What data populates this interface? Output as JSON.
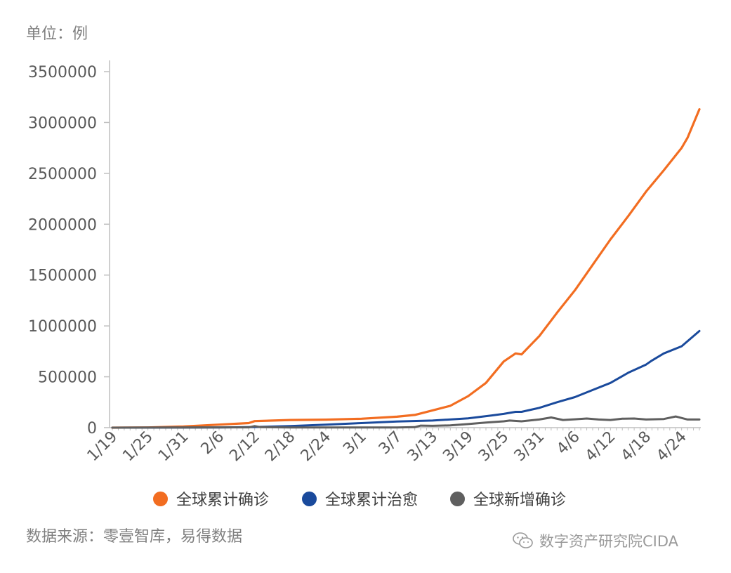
{
  "unit_label": "单位：例",
  "source_note": "数据来源：零壹智库，易得数据",
  "watermark": {
    "text": "数字资产研究院CIDA",
    "icon": "wechat-icon"
  },
  "chart_data": {
    "type": "line",
    "title": "",
    "xlabel": "",
    "ylabel": "单位：例",
    "ylim": [
      0,
      3500000
    ],
    "yticks": [
      0,
      500000,
      1000000,
      1500000,
      2000000,
      2500000,
      3000000,
      3500000
    ],
    "ytick_labels": [
      "0",
      "500000",
      "1000000",
      "1500000",
      "2000000",
      "2500000",
      "3000000",
      "3500000"
    ],
    "x_start_day": 0,
    "x_end_day": 99,
    "xtick_labels": [
      "1/19",
      "1/25",
      "1/31",
      "2/6",
      "2/12",
      "2/18",
      "2/24",
      "3/1",
      "3/7",
      "3/13",
      "3/19",
      "3/25",
      "3/31",
      "4/6",
      "4/12",
      "4/18",
      "4/24"
    ],
    "xtick_days": [
      0,
      6,
      12,
      18,
      24,
      30,
      36,
      42,
      48,
      54,
      60,
      66,
      72,
      78,
      84,
      90,
      96
    ],
    "legend_position": "bottom",
    "series": [
      {
        "name": "全球累计确诊",
        "color": "#f26d21",
        "points": [
          [
            0,
            0
          ],
          [
            6,
            2000
          ],
          [
            12,
            12000
          ],
          [
            18,
            30000
          ],
          [
            23,
            45000
          ],
          [
            24,
            64000
          ],
          [
            30,
            75000
          ],
          [
            36,
            79000
          ],
          [
            42,
            88000
          ],
          [
            48,
            108000
          ],
          [
            51,
            125000
          ],
          [
            54,
            170000
          ],
          [
            57,
            215000
          ],
          [
            60,
            310000
          ],
          [
            63,
            440000
          ],
          [
            66,
            650000
          ],
          [
            68,
            730000
          ],
          [
            69,
            720000
          ],
          [
            72,
            900000
          ],
          [
            75,
            1130000
          ],
          [
            78,
            1350000
          ],
          [
            81,
            1600000
          ],
          [
            84,
            1850000
          ],
          [
            87,
            2080000
          ],
          [
            90,
            2320000
          ],
          [
            93,
            2530000
          ],
          [
            96,
            2750000
          ],
          [
            97,
            2850000
          ],
          [
            99,
            3130000
          ]
        ]
      },
      {
        "name": "全球累计治愈",
        "color": "#1a4a9c",
        "points": [
          [
            0,
            0
          ],
          [
            12,
            500
          ],
          [
            18,
            2000
          ],
          [
            24,
            6000
          ],
          [
            30,
            16000
          ],
          [
            36,
            30000
          ],
          [
            42,
            45000
          ],
          [
            48,
            60000
          ],
          [
            54,
            70000
          ],
          [
            60,
            92000
          ],
          [
            64,
            120000
          ],
          [
            66,
            135000
          ],
          [
            68,
            155000
          ],
          [
            69,
            155000
          ],
          [
            72,
            195000
          ],
          [
            75,
            250000
          ],
          [
            78,
            300000
          ],
          [
            81,
            370000
          ],
          [
            84,
            440000
          ],
          [
            87,
            540000
          ],
          [
            90,
            620000
          ],
          [
            91,
            660000
          ],
          [
            93,
            730000
          ],
          [
            96,
            800000
          ],
          [
            99,
            950000
          ]
        ]
      },
      {
        "name": "全球新增确诊",
        "color": "#5f5f5f",
        "points": [
          [
            0,
            0
          ],
          [
            12,
            1500
          ],
          [
            18,
            3000
          ],
          [
            23,
            2500
          ],
          [
            24,
            15000
          ],
          [
            25,
            5000
          ],
          [
            30,
            2000
          ],
          [
            36,
            2000
          ],
          [
            42,
            1500
          ],
          [
            48,
            2000
          ],
          [
            51,
            5000
          ],
          [
            52,
            20000
          ],
          [
            54,
            18000
          ],
          [
            57,
            22000
          ],
          [
            60,
            35000
          ],
          [
            63,
            50000
          ],
          [
            66,
            62000
          ],
          [
            67,
            70000
          ],
          [
            69,
            62000
          ],
          [
            72,
            80000
          ],
          [
            74,
            100000
          ],
          [
            76,
            75000
          ],
          [
            78,
            82000
          ],
          [
            80,
            90000
          ],
          [
            82,
            80000
          ],
          [
            84,
            75000
          ],
          [
            86,
            88000
          ],
          [
            88,
            90000
          ],
          [
            90,
            80000
          ],
          [
            93,
            85000
          ],
          [
            95,
            110000
          ],
          [
            97,
            80000
          ],
          [
            99,
            80000
          ]
        ]
      }
    ]
  }
}
